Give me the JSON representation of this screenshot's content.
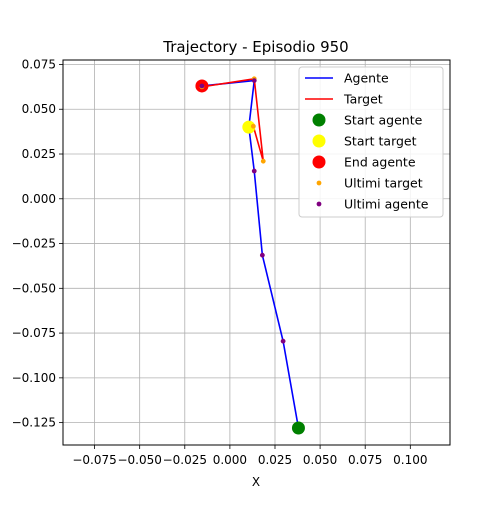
{
  "chart_data": {
    "type": "line",
    "title": "Trajectory - Episodio 950",
    "xlabel": "X",
    "ylabel": "",
    "xlim": [
      -0.0925,
      0.122
    ],
    "ylim": [
      -0.1375,
      0.0775
    ],
    "grid": true,
    "legend_position": "top-right",
    "x_ticks": [
      -0.075,
      -0.05,
      -0.025,
      0.0,
      0.025,
      0.05,
      0.075,
      0.1
    ],
    "x_tick_labels": [
      "−0.075",
      "−0.050",
      "−0.025",
      "0.000",
      "0.025",
      "0.050",
      "0.075",
      "0.100"
    ],
    "y_ticks": [
      0.075,
      0.05,
      0.025,
      0.0,
      -0.025,
      -0.05,
      -0.075,
      -0.1,
      -0.125
    ],
    "y_tick_labels": [
      "0.075",
      "0.050",
      "0.025",
      "0.000",
      "−0.025",
      "−0.050",
      "−0.075",
      "−0.100",
      "−0.125"
    ],
    "series": [
      {
        "name": "Agente",
        "kind": "line",
        "color": "#0000ff",
        "x": [
          0.038,
          0.0295,
          0.018,
          0.0135,
          0.0105,
          0.0135,
          -0.0155
        ],
        "y": [
          -0.128,
          -0.0795,
          -0.0315,
          0.0155,
          0.04,
          0.066,
          0.063
        ]
      },
      {
        "name": "Target",
        "kind": "line",
        "color": "#ff0000",
        "x": [
          0.0105,
          0.013,
          0.0185,
          0.0135,
          -0.0155
        ],
        "y": [
          0.04,
          0.0405,
          0.021,
          0.067,
          0.0625
        ]
      },
      {
        "name": "Start agente",
        "kind": "marker",
        "color": "#008000",
        "x": [
          0.038
        ],
        "y": [
          -0.128
        ]
      },
      {
        "name": "Start target",
        "kind": "marker",
        "color": "#ffff00",
        "x": [
          0.0105
        ],
        "y": [
          0.04
        ]
      },
      {
        "name": "End agente",
        "kind": "marker",
        "color": "#ff0000",
        "x": [
          -0.0155
        ],
        "y": [
          0.063
        ]
      },
      {
        "name": "Ultimi target",
        "kind": "dots",
        "color": "#ffa500",
        "x": [
          0.013,
          0.0185,
          0.0135,
          -0.0155
        ],
        "y": [
          0.0405,
          0.021,
          0.067,
          0.0625
        ]
      },
      {
        "name": "Ultimi agente",
        "kind": "dots",
        "color": "#800080",
        "x": [
          0.0295,
          0.018,
          0.0135,
          0.0135,
          -0.0155
        ],
        "y": [
          -0.0795,
          -0.0315,
          0.0155,
          0.066,
          0.063
        ]
      }
    ]
  }
}
